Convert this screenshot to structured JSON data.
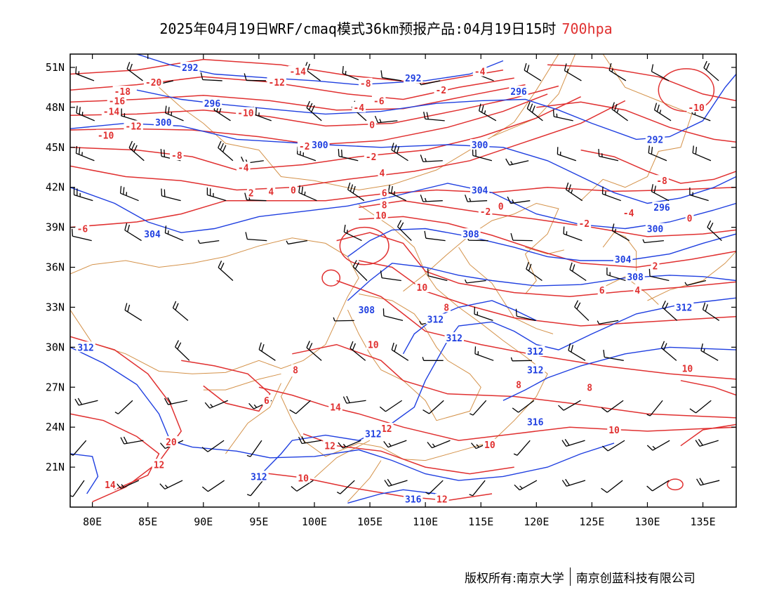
{
  "title": {
    "main": "2025年04月19日WRF/cmaq模式36km预报产品:04月19日15时",
    "level": "700hpa"
  },
  "colors": {
    "temperature": "#e03030",
    "geopotential": "#1f3fe0",
    "boundary": "#d4924a",
    "wind": "#000000",
    "level_text": "#e03030"
  },
  "map": {
    "lon_ticks": [
      "80E",
      "85E",
      "90E",
      "95E",
      "100E",
      "105E",
      "110E",
      "115E",
      "120E",
      "125E",
      "130E",
      "135E"
    ],
    "lat_ticks": [
      "51N",
      "48N",
      "45N",
      "42N",
      "39N",
      "36N",
      "33N",
      "30N",
      "27N",
      "24N",
      "21N"
    ],
    "lon_range": [
      78,
      138
    ],
    "lat_range": [
      18,
      52
    ]
  },
  "contour_labels": {
    "geopotential": [
      {
        "text": "292",
        "lon": 88.8,
        "lat": 51.0
      },
      {
        "text": "292",
        "lon": 108.9,
        "lat": 50.2
      },
      {
        "text": "296",
        "lon": 90.8,
        "lat": 48.3
      },
      {
        "text": "296",
        "lon": 118.4,
        "lat": 49.2
      },
      {
        "text": "300",
        "lon": 86.4,
        "lat": 46.9
      },
      {
        "text": "300",
        "lon": 100.5,
        "lat": 45.2
      },
      {
        "text": "300",
        "lon": 114.9,
        "lat": 45.2
      },
      {
        "text": "292",
        "lon": 130.7,
        "lat": 45.6
      },
      {
        "text": "304",
        "lon": 114.9,
        "lat": 41.8
      },
      {
        "text": "296",
        "lon": 131.3,
        "lat": 40.5
      },
      {
        "text": "300",
        "lon": 130.7,
        "lat": 38.9
      },
      {
        "text": "304",
        "lon": 85.4,
        "lat": 38.5
      },
      {
        "text": "308",
        "lon": 114.1,
        "lat": 38.5
      },
      {
        "text": "304",
        "lon": 127.8,
        "lat": 36.6
      },
      {
        "text": "308",
        "lon": 128.9,
        "lat": 35.3
      },
      {
        "text": "308",
        "lon": 104.7,
        "lat": 32.8
      },
      {
        "text": "312",
        "lon": 133.3,
        "lat": 33.0
      },
      {
        "text": "312",
        "lon": 110.9,
        "lat": 32.1
      },
      {
        "text": "312",
        "lon": 112.6,
        "lat": 30.7
      },
      {
        "text": "312",
        "lon": 79.4,
        "lat": 30.0
      },
      {
        "text": "312",
        "lon": 119.9,
        "lat": 29.7
      },
      {
        "text": "312",
        "lon": 119.9,
        "lat": 28.3
      },
      {
        "text": "316",
        "lon": 119.9,
        "lat": 24.4
      },
      {
        "text": "312",
        "lon": 105.3,
        "lat": 23.5
      },
      {
        "text": "312",
        "lon": 95.0,
        "lat": 20.3
      },
      {
        "text": "316",
        "lon": 108.9,
        "lat": 18.6
      }
    ],
    "temperature": [
      {
        "text": "-20",
        "lon": 85.5,
        "lat": 49.9
      },
      {
        "text": "-18",
        "lon": 82.7,
        "lat": 49.2
      },
      {
        "text": "-16",
        "lon": 82.2,
        "lat": 48.5
      },
      {
        "text": "-14",
        "lon": 81.7,
        "lat": 47.7
      },
      {
        "text": "-12",
        "lon": 83.7,
        "lat": 46.6
      },
      {
        "text": "-10",
        "lon": 81.2,
        "lat": 45.9
      },
      {
        "text": "-8",
        "lon": 87.6,
        "lat": 44.4
      },
      {
        "text": "-14",
        "lon": 98.5,
        "lat": 50.7
      },
      {
        "text": "-12",
        "lon": 96.6,
        "lat": 49.9
      },
      {
        "text": "-10",
        "lon": 93.8,
        "lat": 47.6
      },
      {
        "text": "-8",
        "lon": 104.6,
        "lat": 49.8
      },
      {
        "text": "-6",
        "lon": 105.8,
        "lat": 48.5
      },
      {
        "text": "-4",
        "lon": 104.0,
        "lat": 48.0
      },
      {
        "text": "-4",
        "lon": 114.9,
        "lat": 50.7
      },
      {
        "text": "-2",
        "lon": 111.4,
        "lat": 49.3
      },
      {
        "text": "0",
        "lon": 105.2,
        "lat": 46.7
      },
      {
        "text": "-2",
        "lon": 99.1,
        "lat": 45.1
      },
      {
        "text": "-4",
        "lon": 93.6,
        "lat": 43.5
      },
      {
        "text": "-2",
        "lon": 105.1,
        "lat": 44.3
      },
      {
        "text": "2",
        "lon": 94.3,
        "lat": 41.6
      },
      {
        "text": "4",
        "lon": 96.1,
        "lat": 41.7
      },
      {
        "text": "0",
        "lon": 98.1,
        "lat": 41.8
      },
      {
        "text": "4",
        "lon": 106.1,
        "lat": 43.1
      },
      {
        "text": "6",
        "lon": 106.3,
        "lat": 41.6
      },
      {
        "text": "8",
        "lon": 106.3,
        "lat": 40.7
      },
      {
        "text": "10",
        "lon": 106.0,
        "lat": 39.9
      },
      {
        "text": "-2",
        "lon": 115.4,
        "lat": 40.2
      },
      {
        "text": "0",
        "lon": 116.8,
        "lat": 40.6
      },
      {
        "text": "-2",
        "lon": 124.3,
        "lat": 39.3
      },
      {
        "text": "-4",
        "lon": 128.3,
        "lat": 40.1
      },
      {
        "text": "0",
        "lon": 133.8,
        "lat": 39.7
      },
      {
        "text": "-8",
        "lon": 131.3,
        "lat": 42.5
      },
      {
        "text": "-10",
        "lon": 134.4,
        "lat": 48.0
      },
      {
        "text": "-6",
        "lon": 79.1,
        "lat": 38.9
      },
      {
        "text": "2",
        "lon": 130.7,
        "lat": 36.1
      },
      {
        "text": "4",
        "lon": 129.1,
        "lat": 34.3
      },
      {
        "text": "6",
        "lon": 125.9,
        "lat": 34.3
      },
      {
        "text": "10",
        "lon": 109.7,
        "lat": 34.5
      },
      {
        "text": "8",
        "lon": 111.9,
        "lat": 33.0
      },
      {
        "text": "10",
        "lon": 105.3,
        "lat": 30.2
      },
      {
        "text": "8",
        "lon": 98.3,
        "lat": 28.3
      },
      {
        "text": "6",
        "lon": 95.7,
        "lat": 26.0
      },
      {
        "text": "8",
        "lon": 118.4,
        "lat": 27.2
      },
      {
        "text": "8",
        "lon": 124.8,
        "lat": 27.0
      },
      {
        "text": "10",
        "lon": 133.6,
        "lat": 28.4
      },
      {
        "text": "14",
        "lon": 101.9,
        "lat": 25.5
      },
      {
        "text": "12",
        "lon": 106.5,
        "lat": 23.9
      },
      {
        "text": "12",
        "lon": 101.4,
        "lat": 22.6
      },
      {
        "text": "10",
        "lon": 115.8,
        "lat": 22.7
      },
      {
        "text": "10",
        "lon": 127.0,
        "lat": 23.8
      },
      {
        "text": "20",
        "lon": 87.1,
        "lat": 22.9
      },
      {
        "text": "12",
        "lon": 86.0,
        "lat": 21.2
      },
      {
        "text": "14",
        "lon": 81.6,
        "lat": 19.7
      },
      {
        "text": "10",
        "lon": 99.0,
        "lat": 20.2
      },
      {
        "text": "12",
        "lon": 111.5,
        "lat": 18.6
      }
    ]
  },
  "footer": {
    "left": "版权所有:南京大学",
    "right": "南京创蓝科技有限公司"
  }
}
